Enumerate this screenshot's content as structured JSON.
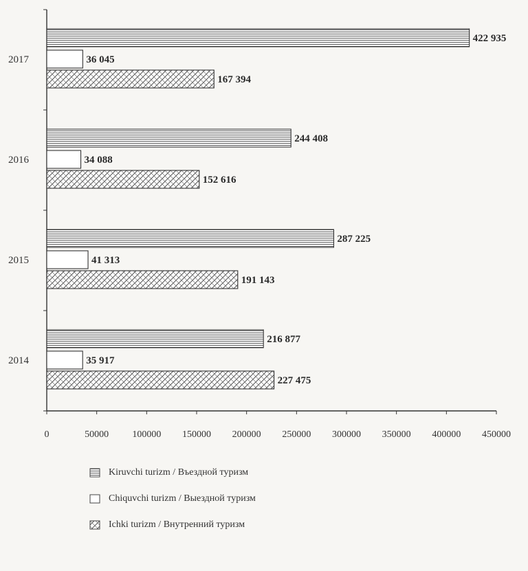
{
  "chart_data": {
    "type": "bar",
    "orientation": "horizontal",
    "categories": [
      "2017",
      "2016",
      "2015",
      "2014"
    ],
    "series": [
      {
        "name": "Kiruvchi turizm / Въездной туризм",
        "values": [
          422935,
          244408,
          287225,
          216877
        ],
        "labels": [
          "422 935",
          "244 408",
          "287 225",
          "216 877"
        ],
        "pattern": "horizontal-lines"
      },
      {
        "name": "Chiquvchi turizm / Выездной туризм",
        "values": [
          36045,
          34088,
          41313,
          35917
        ],
        "labels": [
          "36 045",
          "34 088",
          "41 313",
          "35 917"
        ],
        "pattern": "empty"
      },
      {
        "name": "Ichki turizm / Внутренний туризм",
        "values": [
          167394,
          152616,
          191143,
          227475
        ],
        "labels": [
          "167 394",
          "152 616",
          "191 143",
          "227 475"
        ],
        "pattern": "crosshatch"
      }
    ],
    "xlim": [
      0,
      450000
    ],
    "xticks": [
      "0",
      "50000",
      "100000",
      "150000",
      "200000",
      "250000",
      "300000",
      "350000",
      "400000",
      "450000"
    ],
    "title": "",
    "xlabel": "",
    "ylabel": "",
    "grid": false,
    "legend_position": "bottom"
  }
}
